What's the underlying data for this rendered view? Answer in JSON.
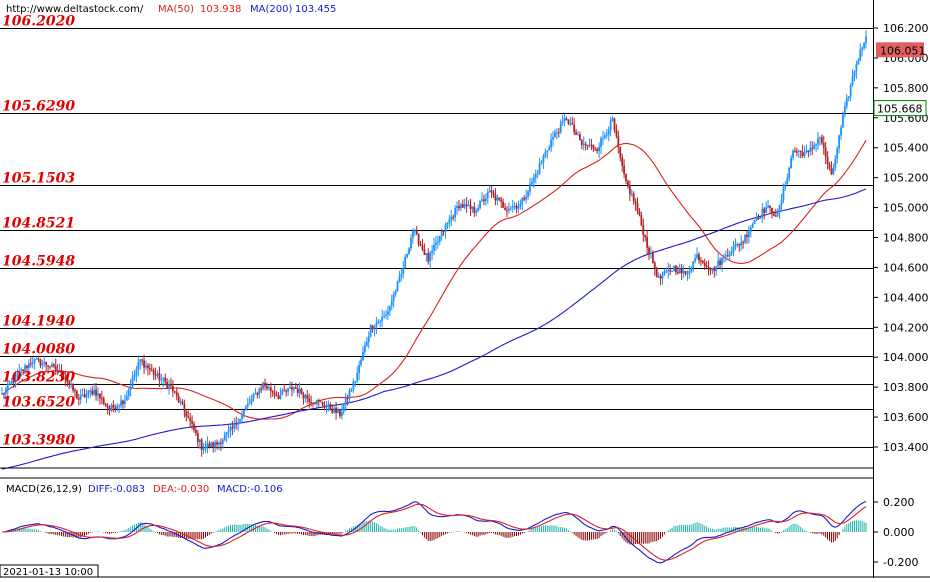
{
  "header": {
    "site": "http://www.deltastock.com/",
    "ma50_label": "MA(50)",
    "ma50_value": "103.938",
    "ma200_label": "MA(200)",
    "ma200_value": "103.455"
  },
  "macd_header": {
    "name": "MACD(26,12,9)",
    "diff_label": "DIFF:-0.083",
    "dea_label": "DEA:-0.030",
    "macd_label": "MACD:-0.106"
  },
  "footer": {
    "date": "2021-01-13 10:00"
  },
  "price_tags": {
    "current": "106.051",
    "current_value": 106.051,
    "secondary": "105.668",
    "secondary_value": 105.668
  },
  "levels": [
    {
      "label": "106.2020",
      "value": 106.202
    },
    {
      "label": "105.6290",
      "value": 105.629
    },
    {
      "label": "105.1503",
      "value": 105.1503
    },
    {
      "label": "104.8521",
      "value": 104.8521
    },
    {
      "label": "104.5948",
      "value": 104.5948
    },
    {
      "label": "104.1940",
      "value": 104.194
    },
    {
      "label": "104.0080",
      "value": 104.008
    },
    {
      "label": "103.8230",
      "value": 103.823
    },
    {
      "label": "103.6520",
      "value": 103.652
    },
    {
      "label": "103.3980",
      "value": 103.398
    }
  ],
  "colors": {
    "up": "#1e90ff",
    "down": "#b22222",
    "ma50": "#e02020",
    "ma200": "#1a1acd",
    "diff": "#1a1acd",
    "dea": "#e02020",
    "level_text": "#dd0000",
    "current_tag": "#e06060",
    "secondary_tag_border": "#008000"
  },
  "chart_data": [
    {
      "type": "candlestick",
      "ylim": [
        103.27,
        106.3
      ],
      "yticks": [
        "106.200",
        "106.000",
        "105.800",
        "105.600",
        "105.400",
        "105.200",
        "105.000",
        "104.800",
        "104.600",
        "104.400",
        "104.200",
        "104.000",
        "103.800",
        "103.600",
        "103.400"
      ],
      "anchors": [
        [
          0,
          103.75
        ],
        [
          8,
          103.88
        ],
        [
          16,
          103.98
        ],
        [
          24,
          103.95
        ],
        [
          32,
          103.88
        ],
        [
          40,
          103.72
        ],
        [
          48,
          103.78
        ],
        [
          56,
          103.65
        ],
        [
          64,
          103.72
        ],
        [
          72,
          103.98
        ],
        [
          80,
          103.88
        ],
        [
          88,
          103.8
        ],
        [
          96,
          103.62
        ],
        [
          104,
          103.4
        ],
        [
          112,
          103.42
        ],
        [
          120,
          103.52
        ],
        [
          128,
          103.68
        ],
        [
          136,
          103.82
        ],
        [
          144,
          103.74
        ],
        [
          152,
          103.8
        ],
        [
          160,
          103.72
        ],
        [
          168,
          103.68
        ],
        [
          176,
          103.62
        ],
        [
          184,
          103.85
        ],
        [
          192,
          104.2
        ],
        [
          200,
          104.28
        ],
        [
          208,
          104.55
        ],
        [
          214,
          104.85
        ],
        [
          222,
          104.65
        ],
        [
          230,
          104.85
        ],
        [
          238,
          105.02
        ],
        [
          246,
          104.98
        ],
        [
          254,
          105.1
        ],
        [
          262,
          105.0
        ],
        [
          270,
          105.02
        ],
        [
          278,
          105.22
        ],
        [
          286,
          105.45
        ],
        [
          294,
          105.6
        ],
        [
          302,
          105.42
        ],
        [
          310,
          105.4
        ],
        [
          318,
          105.58
        ],
        [
          324,
          105.2
        ],
        [
          330,
          105.02
        ],
        [
          336,
          104.75
        ],
        [
          342,
          104.52
        ],
        [
          350,
          104.6
        ],
        [
          356,
          104.55
        ],
        [
          362,
          104.68
        ],
        [
          370,
          104.58
        ],
        [
          378,
          104.7
        ],
        [
          386,
          104.78
        ],
        [
          392,
          104.92
        ],
        [
          398,
          105.0
        ],
        [
          404,
          104.95
        ],
        [
          412,
          105.38
        ],
        [
          420,
          105.36
        ],
        [
          426,
          105.48
        ],
        [
          432,
          105.2
        ],
        [
          438,
          105.6
        ],
        [
          444,
          105.92
        ],
        [
          450,
          106.16
        ]
      ],
      "series": [
        {
          "name": "MA(50)",
          "value": 103.938
        },
        {
          "name": "MA(200)",
          "value": 103.455
        }
      ]
    },
    {
      "type": "bar",
      "ylim": [
        -0.26,
        0.28
      ],
      "yticks": [
        "0.200",
        "0.000",
        "-0.200"
      ],
      "series": [
        {
          "name": "DIFF",
          "value": -0.083
        },
        {
          "name": "DEA",
          "value": -0.03
        },
        {
          "name": "MACD",
          "value": -0.106
        }
      ]
    }
  ]
}
